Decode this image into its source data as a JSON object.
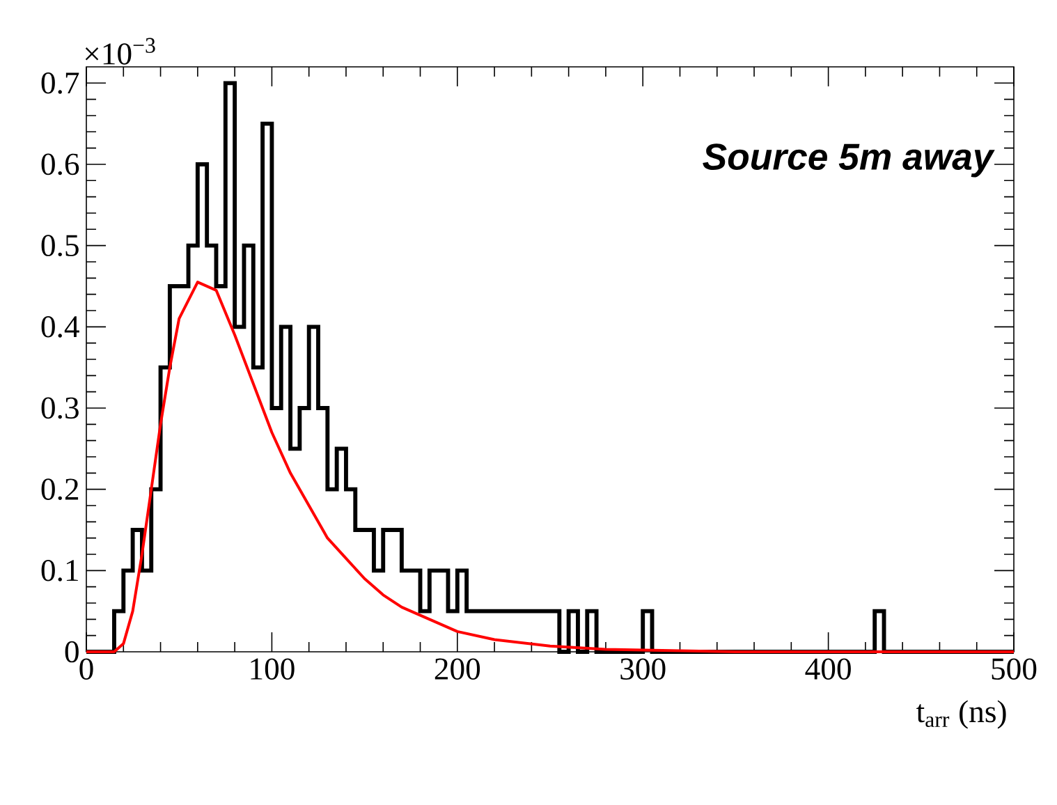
{
  "chart_data": {
    "type": "histogram",
    "xlabel": "t$_{arr}$ (ns)",
    "annotations": [
      "Source 5m away",
      "×10$^{−3}$"
    ],
    "bins": [
      0,
      5,
      10,
      15,
      20,
      25,
      30,
      35,
      40,
      45,
      50,
      55,
      60,
      65,
      70,
      75,
      80,
      85,
      90,
      95,
      100,
      105,
      110,
      115,
      120,
      125,
      130,
      135,
      140,
      145,
      150,
      155,
      160,
      165,
      170,
      175,
      180,
      185,
      190,
      195,
      200,
      205,
      210,
      215,
      220,
      225,
      230,
      235,
      240,
      245,
      250,
      255,
      260,
      265,
      270,
      275,
      280,
      285,
      290,
      295,
      300,
      305,
      310,
      315,
      320,
      325,
      330,
      335,
      340,
      345,
      350,
      355,
      360,
      365,
      370,
      375,
      380,
      385,
      390,
      395,
      400,
      405,
      410,
      415,
      420,
      425,
      430,
      435,
      440,
      445,
      450,
      455,
      460,
      465,
      470,
      475,
      480,
      485,
      490,
      495,
      500
    ],
    "values": [
      0,
      0,
      0,
      0.05,
      0.1,
      0.15,
      0.1,
      0.2,
      0.35,
      0.45,
      0.45,
      0.5,
      0.6,
      0.5,
      0.45,
      0.7,
      0.4,
      0.5,
      0.35,
      0.65,
      0.3,
      0.4,
      0.25,
      0.3,
      0.4,
      0.3,
      0.2,
      0.25,
      0.2,
      0.15,
      0.15,
      0.1,
      0.15,
      0.15,
      0.1,
      0.1,
      0.05,
      0.1,
      0.1,
      0.05,
      0.1,
      0.05,
      0.05,
      0.05,
      0.05,
      0.05,
      0.05,
      0.05,
      0.05,
      0.05,
      0.05,
      0,
      0.05,
      0,
      0.05,
      0,
      0,
      0,
      0,
      0,
      0.05,
      0,
      0,
      0,
      0,
      0,
      0,
      0,
      0,
      0,
      0,
      0,
      0,
      0,
      0,
      0,
      0,
      0,
      0,
      0,
      0,
      0,
      0,
      0,
      0,
      0.05,
      0,
      0,
      0,
      0,
      0,
      0,
      0,
      0,
      0,
      0,
      0,
      0,
      0,
      0
    ],
    "color": "#000000",
    "series": [
      {
        "type": "line",
        "color": "#ff0000",
        "x": [
          0,
          15,
          20,
          25,
          30,
          35,
          40,
          45,
          50,
          60,
          70,
          80,
          90,
          100,
          110,
          120,
          130,
          140,
          150,
          160,
          170,
          180,
          200,
          220,
          250,
          280,
          350,
          500
        ],
        "values": [
          0,
          0,
          0.01,
          0.05,
          0.12,
          0.2,
          0.28,
          0.35,
          0.41,
          0.455,
          0.445,
          0.39,
          0.33,
          0.27,
          0.22,
          0.18,
          0.14,
          0.115,
          0.09,
          0.07,
          0.055,
          0.045,
          0.025,
          0.015,
          0.007,
          0.003,
          0,
          0
        ]
      }
    ],
    "xlim": [
      0,
      500
    ],
    "ylim": [
      0,
      0.72
    ],
    "xticks": [
      0,
      100,
      200,
      300,
      400,
      500
    ],
    "yticks": [
      0,
      0.1,
      0.2,
      0.3,
      0.4,
      0.5,
      0.6,
      0.7
    ]
  }
}
